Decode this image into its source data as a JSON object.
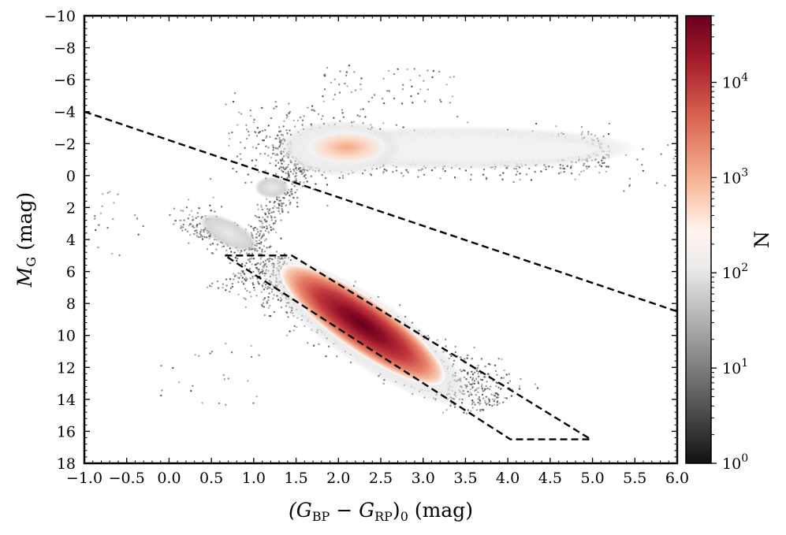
{
  "chart_data": {
    "type": "heatmap",
    "title": "",
    "xlabel": {
      "main": "(G",
      "sub1": "BP",
      "mid": " − G",
      "sub2": "RP",
      "close": ")",
      "sub3": "0",
      "unit": " (mag)"
    },
    "ylabel": {
      "main": "M",
      "sub": "G",
      "unit": " (mag)"
    },
    "xlim": [
      -1.0,
      6.0
    ],
    "ylim": [
      18,
      -10
    ],
    "y_inverted": true,
    "x_ticks": [
      -1.0,
      -0.5,
      0.0,
      0.5,
      1.0,
      1.5,
      2.0,
      2.5,
      3.0,
      3.5,
      4.0,
      4.5,
      5.0,
      5.5,
      6.0
    ],
    "x_tick_labels": [
      "−1.0",
      "−0.5",
      "0.0",
      "0.5",
      "1.0",
      "1.5",
      "2.0",
      "2.5",
      "3.0",
      "3.5",
      "4.0",
      "4.5",
      "5.0",
      "5.5",
      "6.0"
    ],
    "y_ticks": [
      -10,
      -8,
      -6,
      -4,
      -2,
      0,
      2,
      4,
      6,
      8,
      10,
      12,
      14,
      16,
      18
    ],
    "y_tick_labels": [
      "−10",
      "−8",
      "−6",
      "−4",
      "−2",
      "0",
      "2",
      "4",
      "6",
      "8",
      "10",
      "12",
      "14",
      "16",
      "18"
    ],
    "colorbar": {
      "label": "N",
      "scale": "log",
      "range": [
        1,
        50000
      ],
      "ticks": [
        {
          "value": 1,
          "base": "10",
          "exp": "0"
        },
        {
          "value": 10,
          "base": "10",
          "exp": "1"
        },
        {
          "value": 100,
          "base": "10",
          "exp": "2"
        },
        {
          "value": 1000,
          "base": "10",
          "exp": "3"
        },
        {
          "value": 10000,
          "base": "10",
          "exp": "4"
        }
      ],
      "colors": [
        "#111111",
        "#7a7a7a",
        "#d2d2d2",
        "#ffffff",
        "#f7b596",
        "#d6604d",
        "#9b1a2a",
        "#67001f"
      ]
    },
    "lines": [
      {
        "name": "boundary",
        "style": "dashed",
        "points": [
          [
            -1.0,
            -4.0
          ],
          [
            6.0,
            8.5
          ]
        ]
      },
      {
        "name": "selection",
        "style": "dashed",
        "points": [
          [
            0.66,
            5.0
          ],
          [
            1.45,
            5.0
          ],
          [
            4.98,
            16.5
          ],
          [
            4.03,
            16.5
          ],
          [
            0.66,
            5.0
          ]
        ]
      }
    ],
    "density_regions": [
      {
        "region": "red-clump",
        "center": [
          2.1,
          -1.9
        ],
        "peak_count": 1500
      },
      {
        "region": "giant-branch",
        "from": [
          1.3,
          -1.2
        ],
        "to": [
          5.0,
          -1.3
        ],
        "peak_count": 150
      },
      {
        "region": "main-sequence",
        "center": [
          2.1,
          8.5
        ],
        "peak_count": 50000,
        "along": [
          [
            1.3,
            6.5
          ],
          [
            3.3,
            12.5
          ]
        ]
      },
      {
        "region": "upper-main-sequence",
        "from": [
          0.2,
          3.0
        ],
        "to": [
          1.3,
          6.5
        ],
        "peak_count": 60
      }
    ]
  }
}
